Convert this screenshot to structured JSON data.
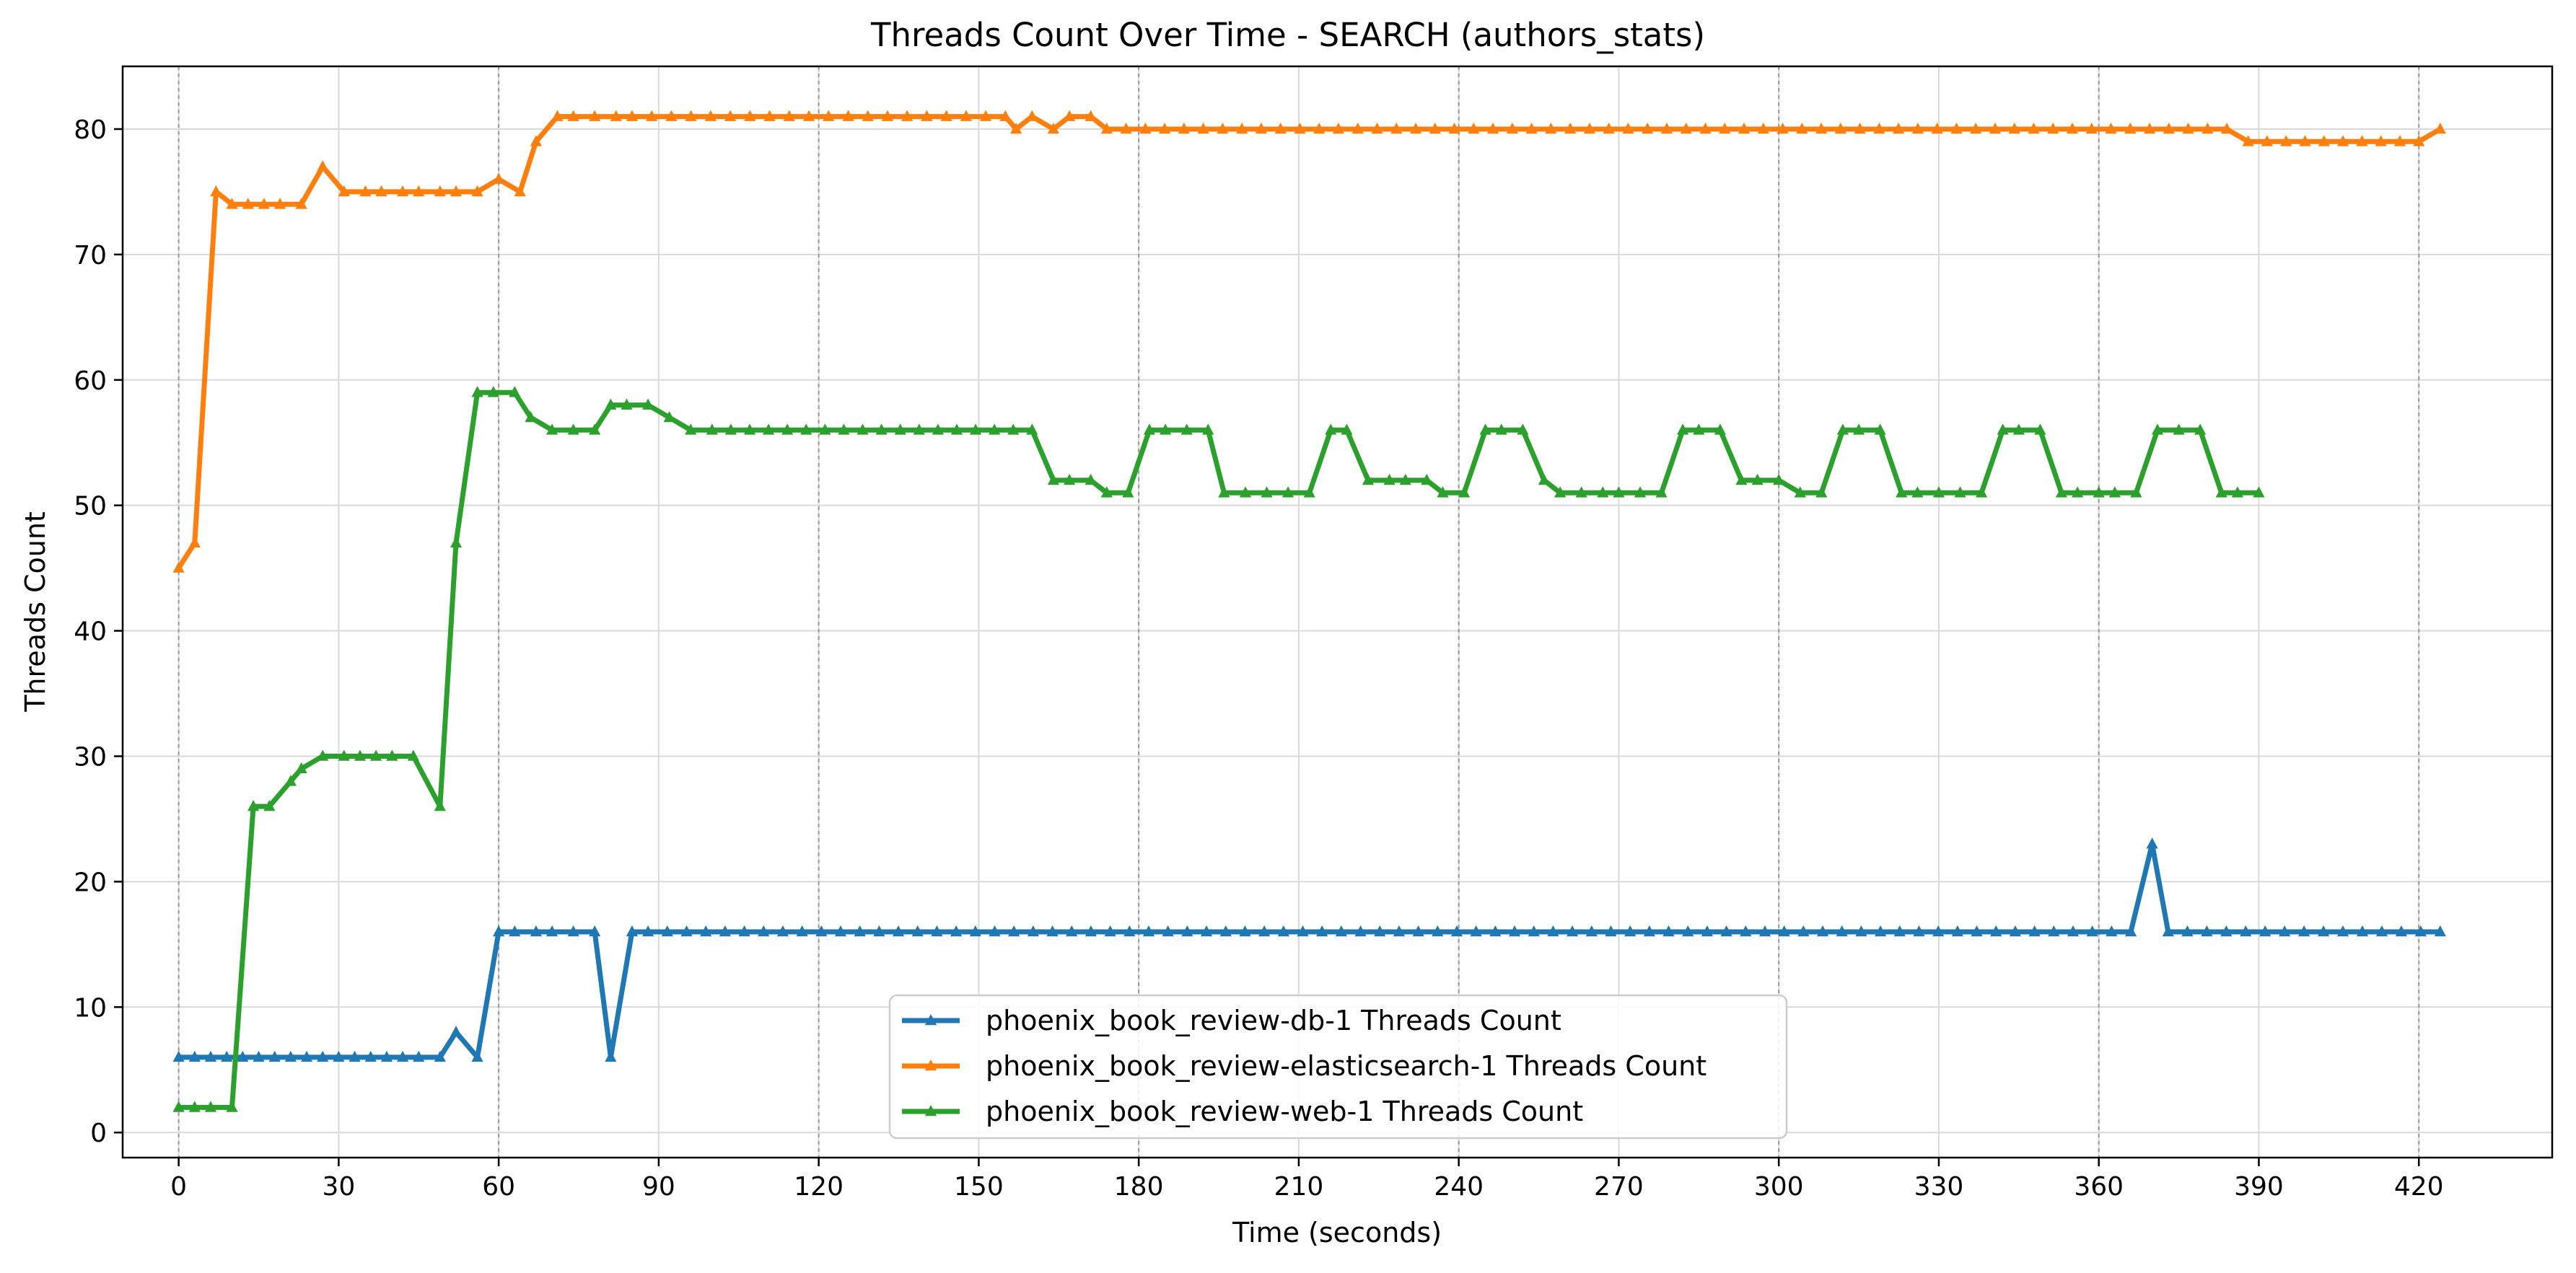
{
  "chart_data": {
    "type": "line",
    "title": "Threads Count Over Time - SEARCH (authors_stats)",
    "xlabel": "Time (seconds)",
    "ylabel": "Threads Count",
    "xlim": [
      -10.5,
      445
    ],
    "ylim": [
      -2,
      85
    ],
    "x_ticks": [
      0,
      30,
      60,
      90,
      120,
      150,
      180,
      210,
      240,
      270,
      300,
      330,
      360,
      390,
      420
    ],
    "y_ticks": [
      0,
      10,
      20,
      30,
      40,
      50,
      60,
      70,
      80
    ],
    "vertical_dashed_lines": [
      0,
      60,
      120,
      180,
      240,
      300,
      360,
      420
    ],
    "grid": true,
    "marker": "triangle-up",
    "legend_position": "lower-center",
    "series": [
      {
        "name": "phoenix_book_review-db-1 Threads Count",
        "color": "#1f77b4",
        "points": [
          [
            0,
            6
          ],
          [
            3,
            6
          ],
          [
            6,
            6
          ],
          [
            9,
            6
          ],
          [
            12,
            6
          ],
          [
            15,
            6
          ],
          [
            18,
            6
          ],
          [
            21,
            6
          ],
          [
            24,
            6
          ],
          [
            27,
            6
          ],
          [
            30,
            6
          ],
          [
            33,
            6
          ],
          [
            36,
            6
          ],
          [
            39,
            6
          ],
          [
            42,
            6
          ],
          [
            45,
            6
          ],
          [
            49,
            6
          ],
          [
            52,
            8
          ],
          [
            56,
            6
          ],
          [
            60,
            16
          ],
          [
            63,
            16
          ],
          [
            67,
            16
          ],
          [
            70,
            16
          ],
          [
            74,
            16
          ],
          [
            78,
            16
          ],
          [
            81,
            6
          ],
          [
            85,
            16
          ],
          [
            88,
            16
          ],
          [
            424,
            16
          ]
        ],
        "spike": [
          [
            366,
            16
          ],
          [
            370,
            23
          ],
          [
            373,
            16
          ]
        ]
      },
      {
        "name": "phoenix_book_review-elasticsearch-1 Threads Count",
        "color": "#ff7f0e",
        "points": [
          [
            0,
            45
          ],
          [
            3,
            47
          ],
          [
            7,
            75
          ],
          [
            10,
            74
          ],
          [
            13,
            74
          ],
          [
            16,
            74
          ],
          [
            19,
            74
          ],
          [
            23,
            74
          ],
          [
            27,
            77
          ],
          [
            31,
            75
          ],
          [
            35,
            75
          ],
          [
            38,
            75
          ],
          [
            42,
            75
          ],
          [
            45,
            75
          ],
          [
            49,
            75
          ],
          [
            52,
            75
          ],
          [
            56,
            75
          ],
          [
            60,
            76
          ],
          [
            64,
            75
          ],
          [
            67,
            79
          ],
          [
            71,
            81
          ],
          [
            74,
            81
          ],
          [
            78,
            81
          ],
          [
            82,
            81
          ],
          [
            85,
            81
          ],
          [
            155,
            81
          ],
          [
            157,
            80
          ],
          [
            160,
            81
          ],
          [
            164,
            80
          ],
          [
            167,
            81
          ],
          [
            171,
            81
          ],
          [
            174,
            80
          ],
          [
            384,
            80
          ],
          [
            388,
            79
          ],
          [
            420,
            79
          ],
          [
            424,
            80
          ]
        ]
      },
      {
        "name": "phoenix_book_review-web-1 Threads Count",
        "color": "#2ca02c",
        "points": [
          [
            0,
            2
          ],
          [
            3,
            2
          ],
          [
            6,
            2
          ],
          [
            10,
            2
          ],
          [
            14,
            26
          ],
          [
            17,
            26
          ],
          [
            21,
            28
          ],
          [
            23,
            29
          ],
          [
            27,
            30
          ],
          [
            31,
            30
          ],
          [
            34,
            30
          ],
          [
            37,
            30
          ],
          [
            40,
            30
          ],
          [
            44,
            30
          ],
          [
            49,
            26
          ],
          [
            52,
            47
          ],
          [
            56,
            59
          ],
          [
            59,
            59
          ],
          [
            63,
            59
          ],
          [
            66,
            57
          ],
          [
            70,
            56
          ],
          [
            74,
            56
          ],
          [
            78,
            56
          ],
          [
            81,
            58
          ],
          [
            84,
            58
          ],
          [
            88,
            58
          ],
          [
            92,
            57
          ],
          [
            96,
            56
          ],
          [
            100,
            56
          ],
          [
            160,
            56
          ],
          [
            164,
            52
          ],
          [
            167,
            52
          ],
          [
            171,
            52
          ],
          [
            174,
            51
          ],
          [
            178,
            51
          ],
          [
            182,
            56
          ],
          [
            185,
            56
          ],
          [
            189,
            56
          ],
          [
            193,
            56
          ],
          [
            196,
            51
          ],
          [
            200,
            51
          ],
          [
            204,
            51
          ],
          [
            208,
            51
          ],
          [
            212,
            51
          ],
          [
            216,
            56
          ],
          [
            219,
            56
          ],
          [
            223,
            52
          ],
          [
            227,
            52
          ],
          [
            230,
            52
          ],
          [
            234,
            52
          ],
          [
            237,
            51
          ],
          [
            241,
            51
          ],
          [
            245,
            56
          ],
          [
            248,
            56
          ],
          [
            252,
            56
          ],
          [
            256,
            52
          ],
          [
            259,
            51
          ],
          [
            263,
            51
          ],
          [
            267,
            51
          ],
          [
            270,
            51
          ],
          [
            274,
            51
          ],
          [
            278,
            51
          ],
          [
            282,
            56
          ],
          [
            285,
            56
          ],
          [
            289,
            56
          ],
          [
            293,
            52
          ],
          [
            296,
            52
          ],
          [
            300,
            52
          ],
          [
            304,
            51
          ],
          [
            308,
            51
          ],
          [
            312,
            56
          ],
          [
            315,
            56
          ],
          [
            319,
            56
          ],
          [
            323,
            51
          ],
          [
            326,
            51
          ],
          [
            330,
            51
          ],
          [
            334,
            51
          ],
          [
            338,
            51
          ],
          [
            342,
            56
          ],
          [
            345,
            56
          ],
          [
            349,
            56
          ],
          [
            353,
            51
          ],
          [
            356,
            51
          ],
          [
            360,
            51
          ],
          [
            363,
            51
          ],
          [
            367,
            51
          ],
          [
            371,
            56
          ],
          [
            375,
            56
          ],
          [
            379,
            56
          ],
          [
            383,
            51
          ],
          [
            386,
            51
          ],
          [
            390,
            51
          ]
        ]
      }
    ]
  }
}
